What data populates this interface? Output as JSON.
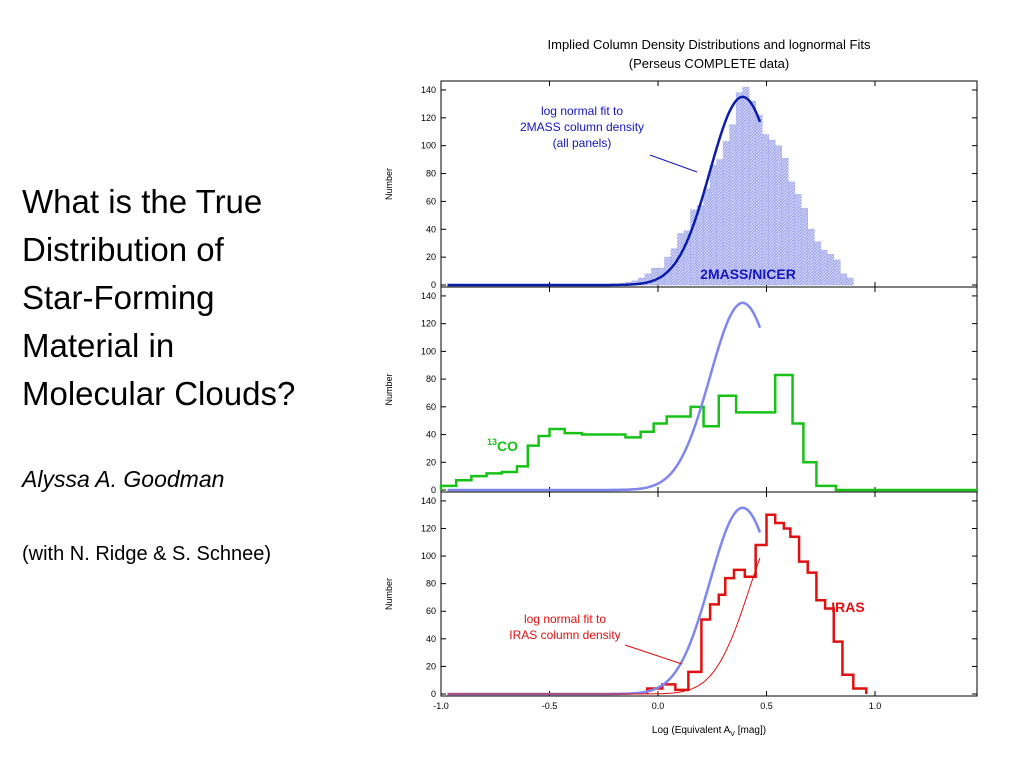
{
  "slide": {
    "title": "What is the True\nDistribution of\nStar-Forming\nMaterial in\nMolecular Clouds?",
    "author": "Alyssa A. Goodman",
    "coauthors": "(with N. Ridge & S. Schnee)"
  },
  "colors": {
    "fit_2mass": "#0a1eaa",
    "fit_2mass_light": "#7f86ee",
    "hist_2mass": "#a4aaf2",
    "hist_13co": "#16c216",
    "hist_iras": "#e01010",
    "fit_iras": "#e01010",
    "label_blue": "#1515c0"
  },
  "chart_data": {
    "type": "histogram",
    "title": "Implied Column Density Distributions and lognormal Fits",
    "subtitle": "(Perseus COMPLETE data)",
    "xlabel_prefix": "Log (Equivalent A",
    "xlabel_sub": "V",
    "xlabel_suffix": " [mag])",
    "ylabel": "Number",
    "xlim": [
      -1.0,
      1.47
    ],
    "ylim": [
      0,
      145
    ],
    "xticks": [
      -1.0,
      -0.5,
      0.0,
      0.5,
      1.0
    ],
    "xtick_labels": [
      "-1.0",
      "-0.5",
      "0.0",
      "0.5",
      "1.0"
    ],
    "yticks": [
      0,
      20,
      40,
      60,
      80,
      100,
      120,
      140
    ],
    "ytick_labels": [
      "0",
      "20",
      "40",
      "60",
      "80",
      "100",
      "120",
      "140"
    ],
    "fit_2mass": {
      "amplitude": 135,
      "mean": 0.39,
      "sigma": 0.15
    },
    "fit_iras": {
      "amplitude": 125,
      "mean": 0.58,
      "sigma": 0.16
    },
    "panels": [
      {
        "label": "2MASS/NICER",
        "series": [
          {
            "type": "histogram",
            "x": [
              -0.18,
              -0.15,
              -0.12,
              -0.09,
              -0.06,
              -0.03,
              0.0,
              0.03,
              0.06,
              0.09,
              0.12,
              0.15,
              0.18,
              0.21,
              0.24,
              0.27,
              0.3,
              0.33,
              0.36,
              0.39,
              0.42,
              0.45,
              0.48,
              0.51,
              0.54,
              0.57,
              0.6,
              0.63,
              0.66,
              0.69,
              0.72,
              0.75,
              0.78,
              0.81,
              0.84,
              0.87
            ],
            "y": [
              1,
              2,
              3,
              5,
              8,
              12,
              12,
              20,
              26,
              37,
              39,
              54,
              57,
              69,
              86,
              90,
              103,
              115,
              138,
              142,
              132,
              122,
              108,
              104,
              100,
              91,
              74,
              65,
              55,
              40,
              31,
              25,
              22,
              18,
              8,
              5
            ]
          },
          {
            "type": "fit",
            "fit": "fit_2mass"
          }
        ],
        "annotation": [
          "log normal fit to",
          "2MASS column density",
          "(all panels)"
        ]
      },
      {
        "label_sup": "13",
        "label": "CO",
        "series": [
          {
            "type": "histogram",
            "x": [
              -1.0,
              -0.93,
              -0.86,
              -0.79,
              -0.72,
              -0.65,
              -0.6,
              -0.55,
              -0.5,
              -0.43,
              -0.35,
              -0.25,
              -0.15,
              -0.08,
              -0.02,
              0.04,
              0.1,
              0.15,
              0.21,
              0.28,
              0.36,
              0.46,
              0.54,
              0.62,
              0.67,
              0.73,
              0.82
            ],
            "y": [
              3,
              7,
              10,
              12,
              13,
              17,
              32,
              39,
              44,
              41,
              40,
              40,
              38,
              42,
              48,
              53,
              53,
              60,
              46,
              68,
              56,
              56,
              83,
              48,
              20,
              3,
              0
            ]
          },
          {
            "type": "fit",
            "fit": "fit_2mass"
          }
        ]
      },
      {
        "label": "IRAS",
        "series": [
          {
            "type": "histogram",
            "x": [
              -0.05,
              0.02,
              0.08,
              0.14,
              0.2,
              0.24,
              0.28,
              0.31,
              0.35,
              0.4,
              0.45,
              0.5,
              0.54,
              0.58,
              0.61,
              0.65,
              0.69,
              0.73,
              0.77,
              0.81,
              0.85,
              0.9
            ],
            "y": [
              4,
              7,
              3,
              16,
              54,
              65,
              72,
              84,
              90,
              85,
              108,
              130,
              124,
              120,
              114,
              96,
              88,
              68,
              62,
              38,
              14,
              4
            ]
          },
          {
            "type": "fit",
            "fit": "fit_2mass"
          },
          {
            "type": "fit",
            "fit": "fit_iras"
          }
        ],
        "annotation": [
          "log normal fit to",
          "IRAS column density"
        ]
      }
    ]
  }
}
